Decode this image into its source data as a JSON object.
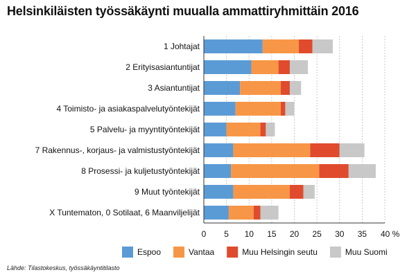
{
  "chart_data": {
    "type": "bar",
    "orientation": "horizontal",
    "stacked": true,
    "title": "Helsinkiläisten työssäkäynti muualla ammattiryhmittäin 2016",
    "source": "Lähde: Tilastokeskus, työssäkäyntitilasto",
    "categories": [
      "1 Johtajat",
      "2 Erityisasiantuntijat",
      "3 Asiantuntijat",
      "4 Toimisto- ja asiakaspalvelutyöntekijät",
      "5 Palvelu- ja myyntityöntekijät",
      "7 Rakennus-, korjaus- ja valmistustyöntekijät",
      "8 Prosessi- ja kuljetustyöntekijät",
      "9 Muut työntekijät",
      "X Tuntematon, 0 Sotilaat, 6 Maanviljelijät"
    ],
    "series": [
      {
        "name": "Espoo",
        "color": "#5b9bd5",
        "values": [
          13.0,
          10.5,
          8.0,
          7.0,
          5.0,
          6.5,
          6.0,
          6.5,
          5.5
        ]
      },
      {
        "name": "Vantaa",
        "color": "#f79646",
        "values": [
          8.0,
          6.0,
          9.0,
          10.0,
          7.5,
          17.0,
          19.5,
          12.5,
          5.5
        ]
      },
      {
        "name": "Muu Helsingin seutu",
        "color": "#e04b2d",
        "values": [
          3.0,
          2.5,
          2.0,
          1.0,
          1.2,
          6.5,
          6.5,
          3.0,
          1.5
        ]
      },
      {
        "name": "Muu Suomi",
        "color": "#c8c8c8",
        "values": [
          4.5,
          4.0,
          2.5,
          2.0,
          2.0,
          5.5,
          6.0,
          2.5,
          4.0
        ]
      }
    ],
    "xlim": [
      0,
      40
    ],
    "xticks": [
      0,
      5,
      10,
      15,
      20,
      25,
      30,
      35,
      40
    ],
    "xtick_labels": [
      "0",
      "5",
      "10",
      "15",
      "20",
      "25",
      "30",
      "35",
      "40 %"
    ],
    "grid": "vertical dashed",
    "legend_position": "bottom"
  }
}
